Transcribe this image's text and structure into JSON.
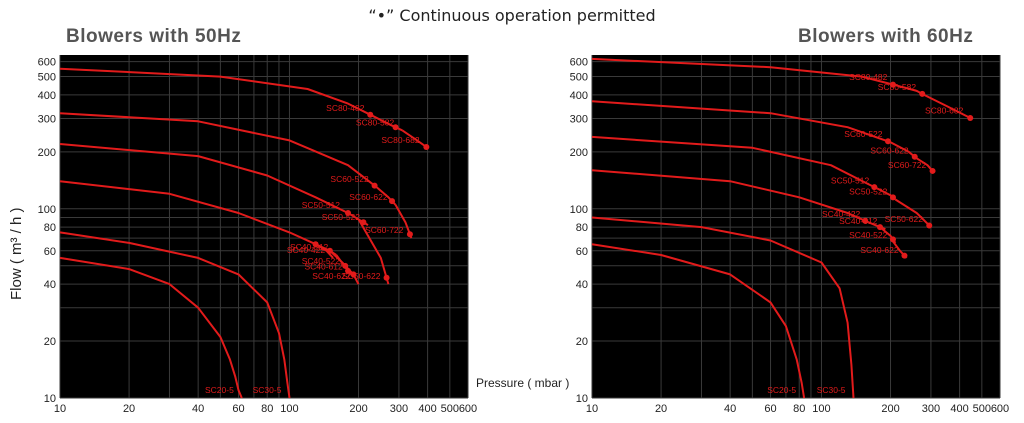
{
  "header_note": "“•”  Continuous operation permitted",
  "chart_data": [
    {
      "type": "line",
      "title": "Blowers with 50Hz",
      "xlabel": "Pressure ( mbar )",
      "ylabel": "Flow ( m³ / h )",
      "xscale": "log",
      "yscale": "log",
      "xlim": [
        10,
        600
      ],
      "ylim": [
        10,
        650
      ],
      "xticks": [
        10,
        20,
        40,
        60,
        80,
        100,
        200,
        300,
        400,
        500,
        600
      ],
      "yticks": [
        10,
        20,
        40,
        60,
        80,
        100,
        200,
        300,
        400,
        500,
        600
      ],
      "grid": true,
      "series": [
        {
          "name": "SC20-5",
          "x": [
            10,
            20,
            30,
            40,
            50,
            55,
            58,
            60,
            62
          ],
          "y": [
            55,
            48,
            40,
            30,
            21,
            16,
            13,
            11,
            10
          ],
          "continuous": []
        },
        {
          "name": "SC30-5",
          "x": [
            10,
            20,
            40,
            60,
            80,
            90,
            95,
            98,
            100
          ],
          "y": [
            75,
            66,
            55,
            45,
            32,
            22,
            16,
            12,
            10
          ],
          "continuous": []
        },
        {
          "name": "SC40-422",
          "x": [
            10,
            30,
            60,
            100,
            130,
            145,
            155
          ],
          "y": [
            140,
            120,
            95,
            75,
            65,
            60,
            55
          ],
          "continuous": [
            130
          ]
        },
        {
          "name": "SC40-512",
          "x": [
            130,
            150,
            160
          ],
          "y": [
            65,
            60,
            57
          ],
          "continuous": [
            150
          ]
        },
        {
          "name": "SC40-522",
          "x": [
            150,
            170,
            180
          ],
          "y": [
            60,
            52,
            48
          ],
          "continuous": [
            175
          ]
        },
        {
          "name": "SC40-612",
          "x": [
            160,
            180,
            185
          ],
          "y": [
            57,
            47,
            45
          ],
          "continuous": [
            180
          ]
        },
        {
          "name": "SC40-622",
          "x": [
            170,
            190,
            200
          ],
          "y": [
            52,
            45,
            40
          ],
          "continuous": [
            190
          ]
        },
        {
          "name": "SC50-512",
          "x": [
            10,
            40,
            80,
            130,
            180
          ],
          "y": [
            220,
            190,
            150,
            115,
            95
          ],
          "continuous": [
            180
          ]
        },
        {
          "name": "SC50-522",
          "x": [
            180,
            200,
            220
          ],
          "y": [
            95,
            88,
            82
          ],
          "continuous": [
            210
          ]
        },
        {
          "name": "SC50-622",
          "x": [
            200,
            250,
            270
          ],
          "y": [
            88,
            55,
            40
          ],
          "continuous": [
            265
          ]
        },
        {
          "name": "SC60-522",
          "x": [
            10,
            40,
            100,
            180,
            240
          ],
          "y": [
            320,
            290,
            230,
            170,
            130
          ],
          "continuous": [
            235
          ]
        },
        {
          "name": "SC60-622",
          "x": [
            240,
            270,
            290
          ],
          "y": [
            130,
            115,
            105
          ],
          "continuous": [
            280
          ]
        },
        {
          "name": "SC60-722",
          "x": [
            290,
            320,
            340
          ],
          "y": [
            105,
            85,
            70
          ],
          "continuous": [
            335
          ]
        },
        {
          "name": "SC80-482",
          "x": [
            10,
            50,
            120,
            180,
            230
          ],
          "y": [
            550,
            500,
            430,
            360,
            310
          ],
          "continuous": [
            225
          ]
        },
        {
          "name": "SC80-582",
          "x": [
            230,
            280,
            310
          ],
          "y": [
            310,
            275,
            260
          ],
          "continuous": [
            290
          ]
        },
        {
          "name": "SC80-682",
          "x": [
            310,
            360,
            400
          ],
          "y": [
            260,
            230,
            210
          ],
          "continuous": [
            395
          ]
        }
      ]
    },
    {
      "type": "line",
      "title": "Blowers with 60Hz",
      "xlabel": "",
      "ylabel": "",
      "xscale": "log",
      "yscale": "log",
      "xlim": [
        10,
        600
      ],
      "ylim": [
        10,
        650
      ],
      "xticks": [
        10,
        20,
        40,
        60,
        80,
        100,
        200,
        300,
        400,
        500,
        600
      ],
      "yticks": [
        10,
        20,
        40,
        60,
        80,
        100,
        200,
        300,
        400,
        500,
        600
      ],
      "grid": true,
      "series": [
        {
          "name": "SC20-5",
          "x": [
            10,
            20,
            40,
            60,
            70,
            78,
            82,
            84
          ],
          "y": [
            65,
            57,
            45,
            32,
            24,
            16,
            12,
            10
          ],
          "continuous": []
        },
        {
          "name": "SC30-5",
          "x": [
            10,
            30,
            60,
            100,
            120,
            130,
            135,
            138
          ],
          "y": [
            90,
            80,
            68,
            52,
            38,
            25,
            15,
            10
          ],
          "continuous": []
        },
        {
          "name": "SC40-422",
          "x": [
            10,
            40,
            80,
            130,
            160
          ],
          "y": [
            160,
            140,
            115,
            95,
            85
          ],
          "continuous": [
            155
          ]
        },
        {
          "name": "SC40-512",
          "x": [
            160,
            180,
            190
          ],
          "y": [
            85,
            80,
            78
          ],
          "continuous": [
            180
          ]
        },
        {
          "name": "SC40-522",
          "x": [
            180,
            200,
            210
          ],
          "y": [
            80,
            72,
            66
          ],
          "continuous": [
            205
          ]
        },
        {
          "name": "SC40-622",
          "x": [
            200,
            220,
            235
          ],
          "y": [
            70,
            60,
            55
          ],
          "continuous": [
            230
          ]
        },
        {
          "name": "SC50-512",
          "x": [
            10,
            50,
            110,
            160,
            175
          ],
          "y": [
            240,
            210,
            170,
            135,
            128
          ],
          "continuous": [
            170
          ]
        },
        {
          "name": "SC50-522",
          "x": [
            175,
            200,
            210
          ],
          "y": [
            128,
            118,
            112
          ],
          "continuous": [
            205
          ]
        },
        {
          "name": "SC50-622",
          "x": [
            210,
            260,
            300
          ],
          "y": [
            112,
            95,
            80
          ],
          "continuous": [
            295
          ]
        },
        {
          "name": "SC60-522",
          "x": [
            10,
            60,
            130,
            200
          ],
          "y": [
            370,
            320,
            270,
            225
          ],
          "continuous": [
            195
          ]
        },
        {
          "name": "SC60-622",
          "x": [
            200,
            240,
            260
          ],
          "y": [
            225,
            200,
            185
          ],
          "continuous": [
            255
          ]
        },
        {
          "name": "SC60-722",
          "x": [
            260,
            290,
            310
          ],
          "y": [
            185,
            170,
            155
          ],
          "continuous": [
            305
          ]
        },
        {
          "name": "SC80-482",
          "x": [
            10,
            60,
            150,
            210
          ],
          "y": [
            620,
            560,
            500,
            450
          ],
          "continuous": [
            205
          ]
        },
        {
          "name": "SC80-582",
          "x": [
            210,
            260,
            280
          ],
          "y": [
            450,
            420,
            400
          ],
          "continuous": [
            275
          ]
        },
        {
          "name": "SC80-682",
          "x": [
            280,
            350,
            450
          ],
          "y": [
            400,
            350,
            300
          ],
          "continuous": [
            445
          ]
        }
      ]
    }
  ]
}
